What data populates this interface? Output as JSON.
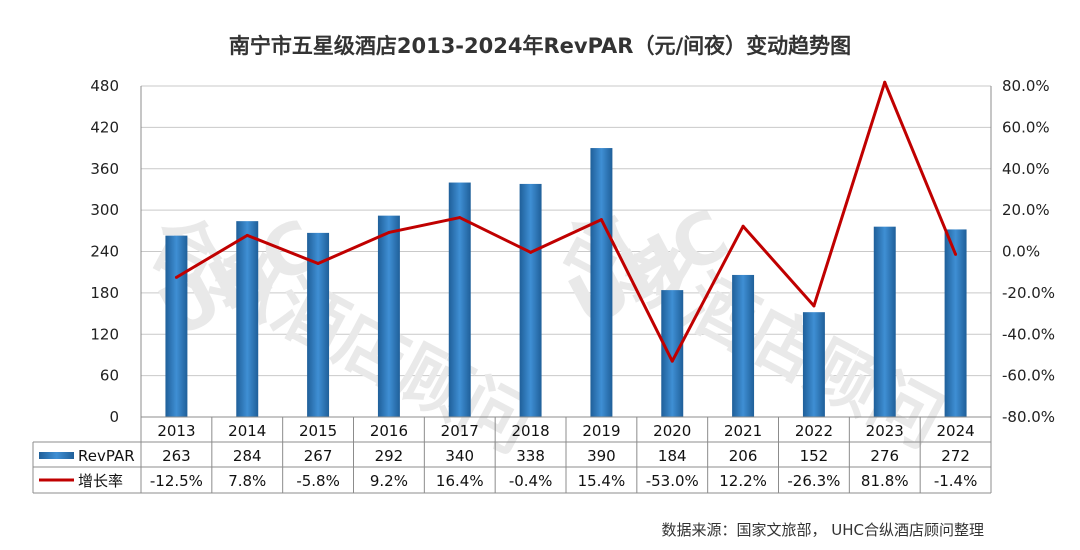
{
  "chart_data": {
    "type": "bar+line",
    "title": "南宁市五星级酒店2013-2024年RevPAR（元/间夜）变动趋势图",
    "categories": [
      "2013",
      "2014",
      "2015",
      "2016",
      "2017",
      "2018",
      "2019",
      "2020",
      "2021",
      "2022",
      "2023",
      "2024"
    ],
    "series": [
      {
        "name": "RevPAR",
        "type": "bar",
        "axis": "left",
        "color": "#2e75b6",
        "values": [
          263,
          284,
          267,
          292,
          340,
          338,
          390,
          184,
          206,
          152,
          276,
          272
        ],
        "labels": [
          "263",
          "284",
          "267",
          "292",
          "340",
          "338",
          "390",
          "184",
          "206",
          "152",
          "276",
          "272"
        ]
      },
      {
        "name": "增长率",
        "type": "line",
        "axis": "right",
        "color": "#c00000",
        "values": [
          -12.5,
          7.8,
          -5.8,
          9.2,
          16.4,
          -0.4,
          15.4,
          -53.0,
          12.2,
          -26.3,
          81.8,
          -1.4
        ],
        "labels": [
          "-12.5%",
          "7.8%",
          "-5.8%",
          "9.2%",
          "16.4%",
          "-0.4%",
          "15.4%",
          "-53.0%",
          "12.2%",
          "-26.3%",
          "81.8%",
          "-1.4%"
        ]
      }
    ],
    "y_left": {
      "min": 0,
      "max": 480,
      "ticks": [
        "0",
        "60",
        "120",
        "180",
        "240",
        "300",
        "360",
        "420",
        "480"
      ]
    },
    "y_right": {
      "min": -80,
      "max": 80,
      "ticks": [
        "-80.0%",
        "-60.0%",
        "-40.0%",
        "-20.0%",
        "0.0%",
        "20.0%",
        "40.0%",
        "60.0%",
        "80.0%"
      ]
    },
    "grid": true,
    "legend": "data-table",
    "source": "数据来源：国家文旅部，  UHC合纵酒店顾问整理",
    "watermark": [
      "UHC",
      "合纵酒店顾问",
      "UHC",
      "合纵酒店顾问"
    ]
  }
}
